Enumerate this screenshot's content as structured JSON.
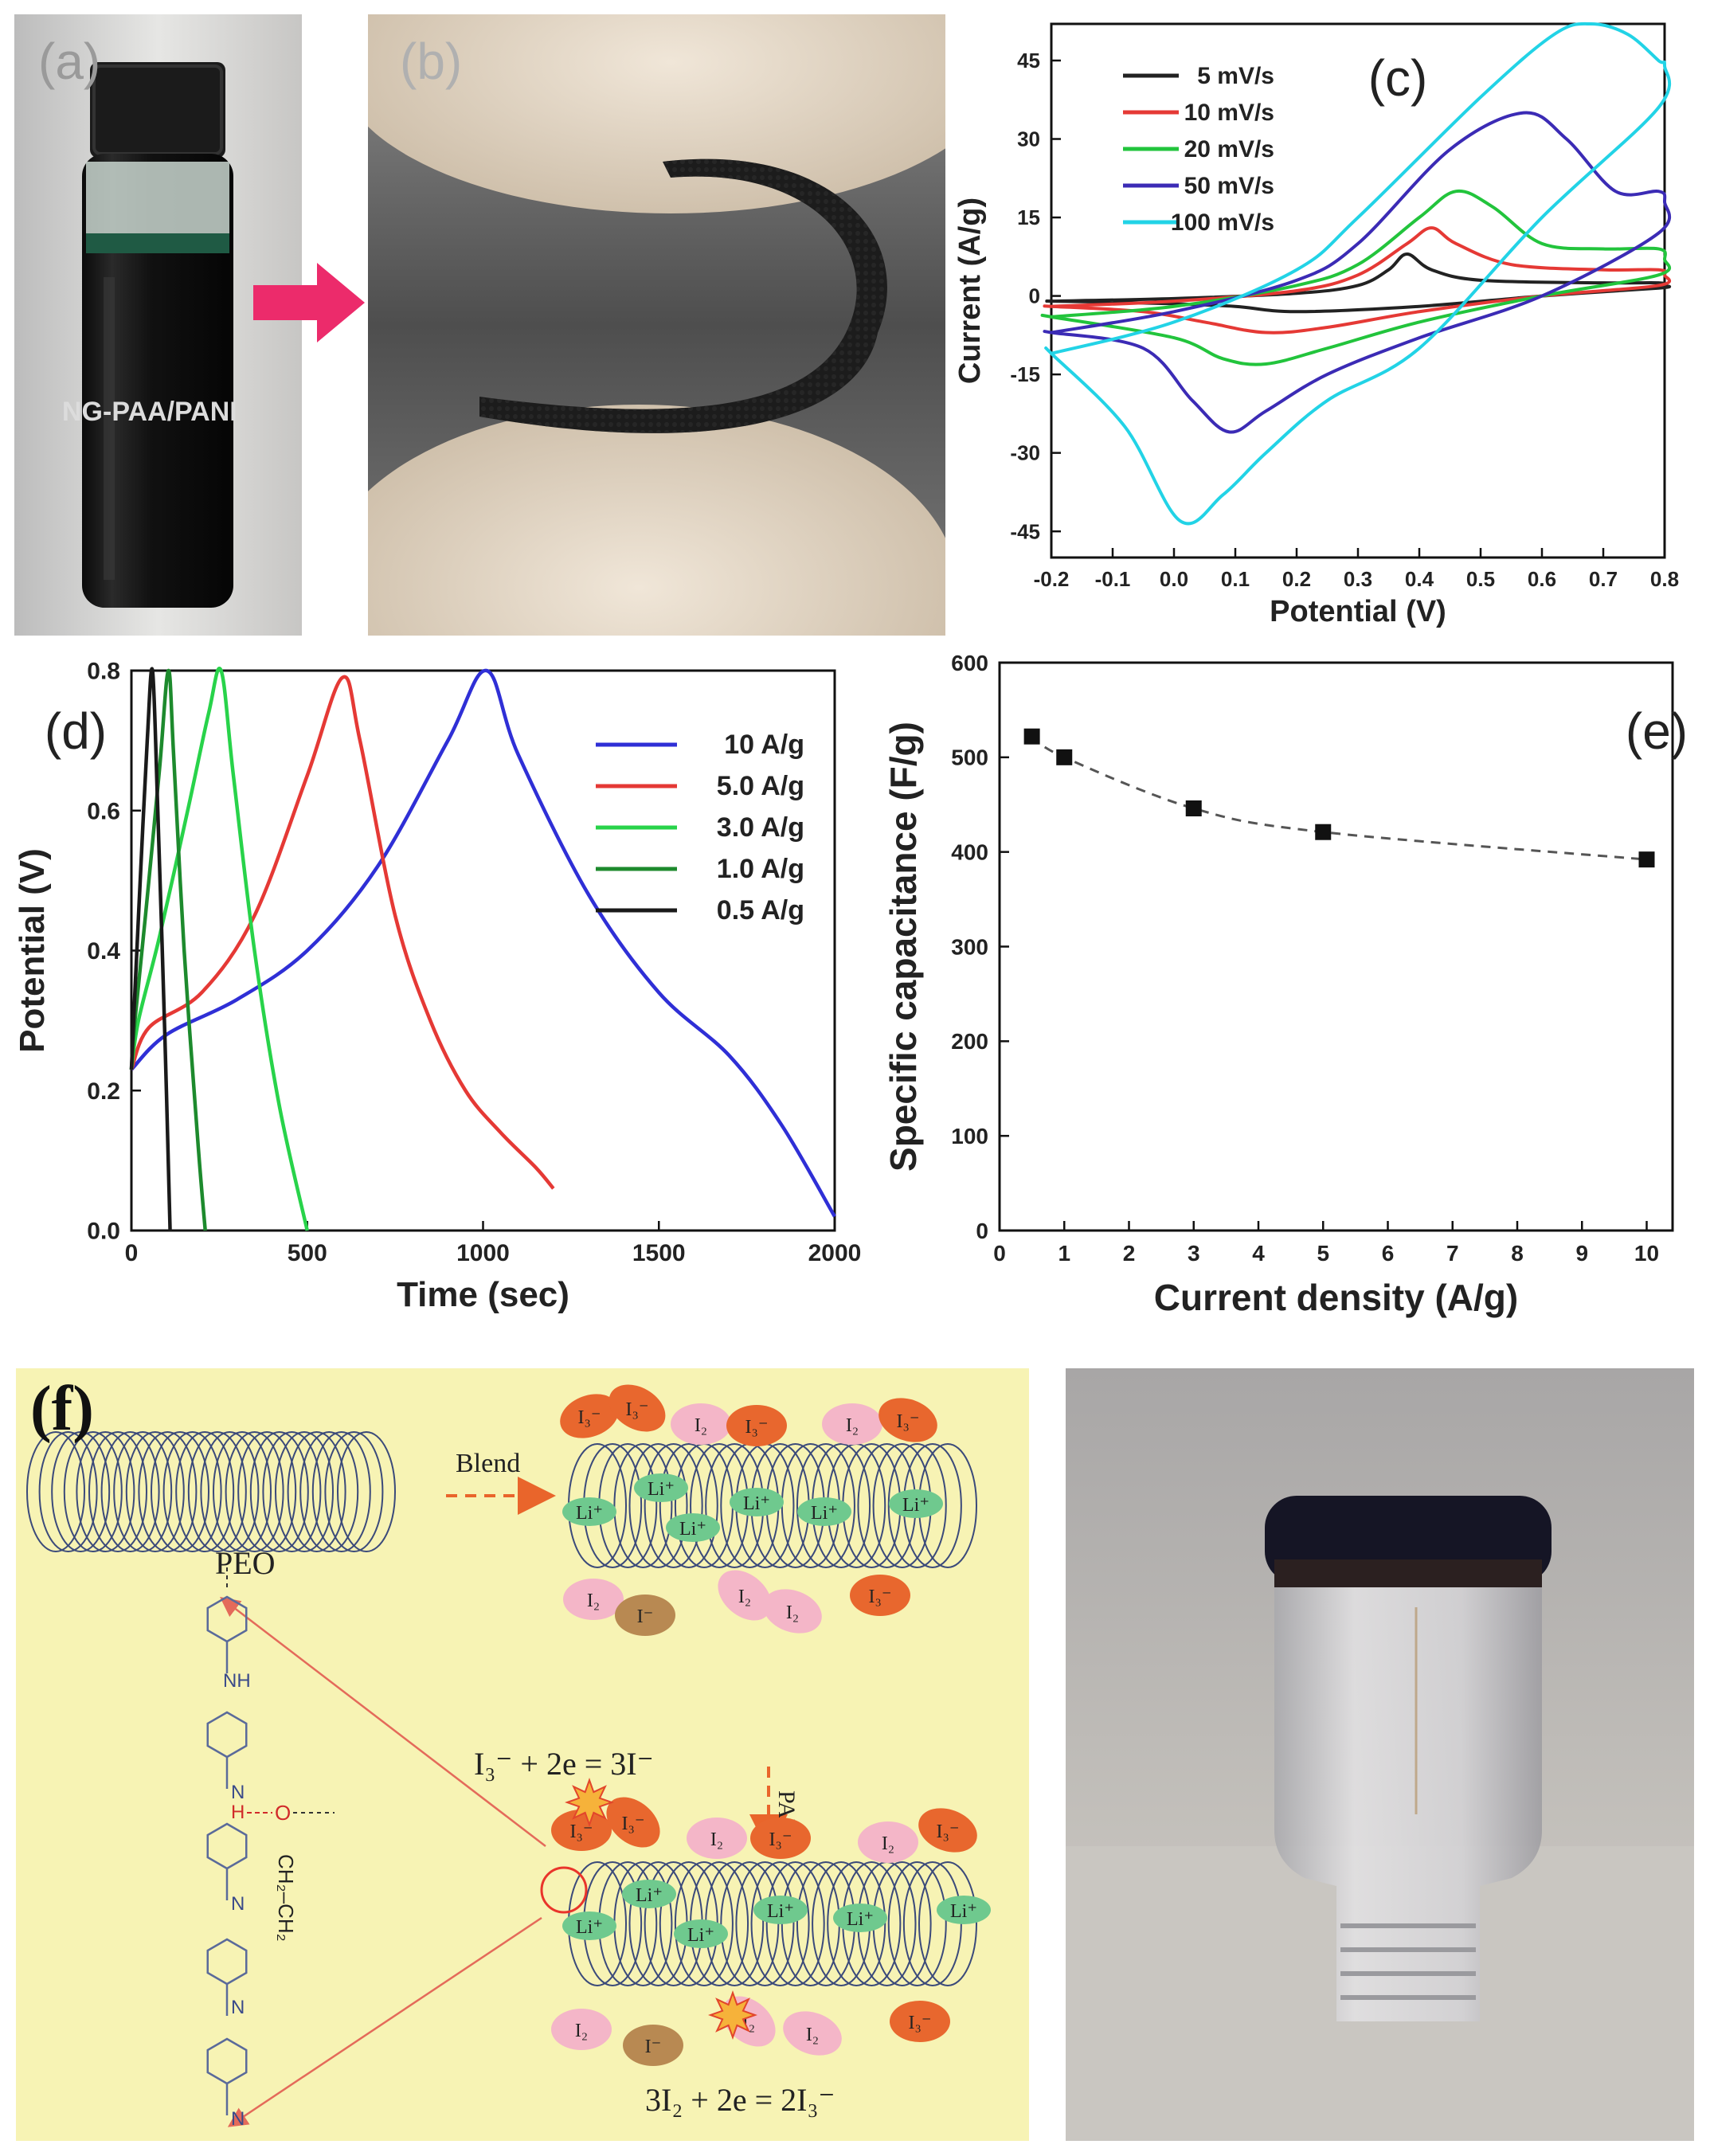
{
  "panels": {
    "a": {
      "label": "(a)",
      "caption": "NG-PAA/PANI"
    },
    "b": {
      "label": "(b)"
    },
    "f": {
      "label": "(f)"
    }
  },
  "colors": {
    "diagram_bg": "#f7f3b4",
    "coil": "#3b4a7a",
    "ion_orange": "#e8672e",
    "ion_pink": "#f4b6c8",
    "ion_green": "#6fc98e",
    "ion_brown": "#b88952",
    "arrow": "#e9652b",
    "photo_dark": "#121212",
    "photo_bg": "#bdb8b2"
  },
  "chart_data": [
    {
      "id": "c",
      "type": "line",
      "panel_label": "(c)",
      "xlabel": "Potential (V)",
      "ylabel": "Current (A/g)",
      "xlim": [
        -0.2,
        0.8
      ],
      "ylim": [
        -50,
        52
      ],
      "xticks": [
        -0.2,
        -0.1,
        0.0,
        0.1,
        0.2,
        0.3,
        0.4,
        0.5,
        0.6,
        0.7,
        0.8
      ],
      "xtick_labels": [
        "-0.2",
        "-0.1",
        "0.0",
        "0.1",
        "0.2",
        "0.3",
        "0.4",
        "0.5",
        "0.6",
        "0.7",
        "0.8"
      ],
      "yticks": [
        -45,
        -30,
        -15,
        0,
        15,
        30,
        45
      ],
      "ytick_labels": [
        "-45",
        "-30",
        "-15",
        "0",
        "15",
        "30",
        "45"
      ],
      "legend_position": "top-left",
      "series": [
        {
          "name": "5 mV/s",
          "color": "#222222",
          "x": [
            -0.2,
            0.0,
            0.2,
            0.3,
            0.35,
            0.38,
            0.42,
            0.5,
            0.7,
            0.79,
            0.8,
            0.79,
            0.6,
            0.4,
            0.2,
            0.1,
            0.0,
            -0.1,
            -0.2
          ],
          "y": [
            -1,
            -0.5,
            0.5,
            2,
            5,
            8,
            5,
            3,
            2.5,
            2.5,
            2,
            1.5,
            0,
            -2,
            -3,
            -2,
            -1.5,
            -1.2,
            -1
          ]
        },
        {
          "name": "10 mV/s",
          "color": "#e53935",
          "x": [
            -0.2,
            0.0,
            0.2,
            0.3,
            0.38,
            0.42,
            0.46,
            0.55,
            0.7,
            0.79,
            0.8,
            0.79,
            0.6,
            0.4,
            0.25,
            0.15,
            0.05,
            -0.05,
            -0.2
          ],
          "y": [
            -2,
            -1,
            1,
            4,
            10,
            13,
            10,
            6,
            5,
            5,
            4,
            2,
            0,
            -3,
            -6,
            -7,
            -5,
            -3,
            -2
          ]
        },
        {
          "name": "20 mV/s",
          "color": "#22c43c",
          "x": [
            -0.2,
            0.0,
            0.2,
            0.3,
            0.4,
            0.46,
            0.52,
            0.6,
            0.7,
            0.79,
            0.8,
            0.79,
            0.6,
            0.4,
            0.25,
            0.15,
            0.08,
            0.0,
            -0.2
          ],
          "y": [
            -4,
            -2,
            2,
            6,
            15,
            20,
            17,
            10,
            9,
            9,
            7,
            4,
            0,
            -5,
            -10,
            -13,
            -12,
            -8,
            -4
          ]
        },
        {
          "name": "50 mV/s",
          "color": "#3b2bb5",
          "x": [
            -0.2,
            0.0,
            0.2,
            0.3,
            0.45,
            0.57,
            0.64,
            0.72,
            0.79,
            0.8,
            0.79,
            0.6,
            0.4,
            0.25,
            0.15,
            0.09,
            0.03,
            -0.05,
            -0.2
          ],
          "y": [
            -7,
            -3,
            3,
            10,
            28,
            35,
            30,
            20,
            20,
            18,
            12,
            0,
            -8,
            -15,
            -22,
            -26,
            -20,
            -10,
            -7
          ]
        },
        {
          "name": "100 mV/s",
          "color": "#22d3e6",
          "x": [
            -0.2,
            0.0,
            0.2,
            0.3,
            0.5,
            0.62,
            0.68,
            0.74,
            0.79,
            0.8,
            0.79,
            0.6,
            0.4,
            0.25,
            0.15,
            0.08,
            0.01,
            -0.08,
            -0.2
          ],
          "y": [
            -11,
            -5,
            5,
            15,
            38,
            50,
            52,
            50,
            45,
            44,
            36,
            15,
            -10,
            -20,
            -30,
            -38,
            -43,
            -25,
            -11
          ]
        }
      ]
    },
    {
      "id": "d",
      "type": "line",
      "panel_label": "(d)",
      "xlabel": "Time (sec)",
      "ylabel": "Potential (V)",
      "xlim": [
        0,
        2000
      ],
      "ylim": [
        0,
        0.8
      ],
      "xticks": [
        0,
        500,
        1000,
        1500,
        2000
      ],
      "xtick_labels": [
        "0",
        "500",
        "1000",
        "1500",
        "2000"
      ],
      "yticks": [
        0.0,
        0.2,
        0.4,
        0.6,
        0.8
      ],
      "ytick_labels": [
        "0.0",
        "0.2",
        "0.4",
        "0.6",
        "0.8"
      ],
      "legend_position": "top-right",
      "series": [
        {
          "name": "10 A/g",
          "color": "#2f2fd6",
          "x": [
            0,
            100,
            300,
            500,
            700,
            900,
            1010,
            1100,
            1300,
            1500,
            1700,
            1850,
            2000
          ],
          "y": [
            0.23,
            0.28,
            0.33,
            0.4,
            0.52,
            0.7,
            0.8,
            0.68,
            0.48,
            0.34,
            0.25,
            0.15,
            0.02
          ]
        },
        {
          "name": "5.0 A/g",
          "color": "#e53935",
          "x": [
            0,
            50,
            200,
            350,
            500,
            600,
            650,
            750,
            850,
            950,
            1050,
            1150,
            1200
          ],
          "y": [
            0.23,
            0.29,
            0.34,
            0.45,
            0.65,
            0.79,
            0.7,
            0.45,
            0.3,
            0.2,
            0.14,
            0.09,
            0.06
          ]
        },
        {
          "name": "3.0 A/g",
          "color": "#28d34a",
          "x": [
            0,
            20,
            80,
            160,
            220,
            255,
            290,
            350,
            420,
            500
          ],
          "y": [
            0.23,
            0.3,
            0.42,
            0.6,
            0.74,
            0.8,
            0.65,
            0.4,
            0.18,
            0.0
          ]
        },
        {
          "name": "1.0 A/g",
          "color": "#1d8a2d",
          "x": [
            0,
            10,
            40,
            80,
            105,
            120,
            150,
            190,
            210
          ],
          "y": [
            0.23,
            0.3,
            0.45,
            0.66,
            0.8,
            0.68,
            0.4,
            0.12,
            0.0
          ]
        },
        {
          "name": "0.5 A/g",
          "color": "#1a1a1a",
          "x": [
            0,
            8,
            25,
            45,
            60,
            75,
            95,
            110
          ],
          "y": [
            0.23,
            0.32,
            0.5,
            0.7,
            0.8,
            0.6,
            0.28,
            0.0
          ]
        }
      ]
    },
    {
      "id": "e",
      "type": "scatter",
      "panel_label": "(e)",
      "xlabel": "Current density (A/g)",
      "ylabel": "Specific capacitance (F/g)",
      "xlim": [
        0,
        10.4
      ],
      "ylim": [
        0,
        600
      ],
      "xticks": [
        0,
        1,
        2,
        3,
        4,
        5,
        6,
        7,
        8,
        9,
        10
      ],
      "xtick_labels": [
        "0",
        "1",
        "2",
        "3",
        "4",
        "5",
        "6",
        "7",
        "8",
        "9",
        "10"
      ],
      "yticks": [
        0,
        100,
        200,
        300,
        400,
        500,
        600
      ],
      "ytick_labels": [
        "0",
        "100",
        "200",
        "300",
        "400",
        "500",
        "600"
      ],
      "series": [
        {
          "x": [
            0.5,
            1,
            3,
            5,
            10
          ],
          "y": [
            522,
            500,
            446,
            421,
            392
          ],
          "color": "#111111",
          "connector": "dashed"
        }
      ]
    }
  ],
  "diagram_f": {
    "peo_label": "PEO",
    "blend_label": "Blend",
    "pani_label": "PANi",
    "eq_top": "I₃⁻ + 2e = 3I⁻",
    "eq_bottom": "3I₂ + 2e = 2I₃⁻",
    "li": "Li⁺",
    "i3": "I₃⁻",
    "i2": "I₂",
    "iminus": "I⁻",
    "nh": "NH",
    "n": "N",
    "h": "H",
    "o": "O",
    "ch2ch2": "CH₂–CH₂"
  }
}
